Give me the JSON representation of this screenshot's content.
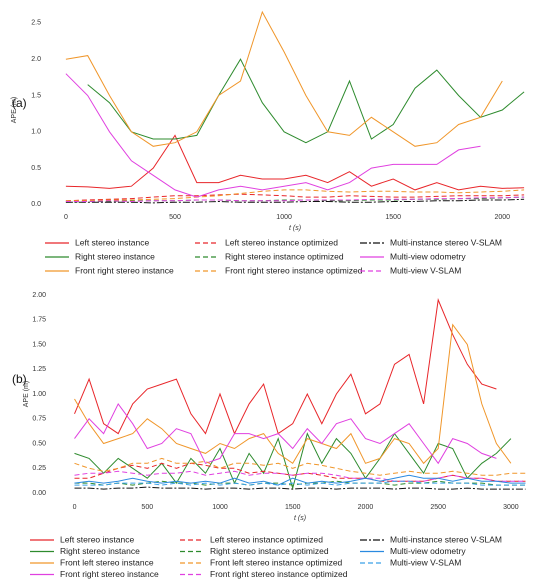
{
  "chart_data": [
    {
      "type": "line",
      "panel_label": "(a)",
      "x_label": "t (s)",
      "y_label": "APE (m)",
      "xlim": [
        -50,
        2150
      ],
      "ylim": [
        -0.05,
        2.65
      ],
      "xticks": [
        0,
        500,
        1000,
        1500,
        2000
      ],
      "yticks": [
        {
          "value": 0,
          "label": "0.0"
        },
        0.5,
        {
          "value": 1,
          "label": "1.0"
        },
        1.5,
        {
          "value": 2,
          "label": "2.0"
        },
        2.5
      ],
      "x": [
        0,
        100,
        200,
        300,
        400,
        500,
        600,
        700,
        800,
        900,
        1000,
        1100,
        1200,
        1300,
        1400,
        1500,
        1600,
        1700,
        1800,
        1900,
        2000,
        2100
      ],
      "series": [
        {
          "name": "Left stereo instance",
          "color": "#e8262a",
          "style": "solid",
          "values": [
            0.25,
            0.24,
            0.22,
            0.25,
            0.5,
            0.95,
            0.3,
            0.3,
            0.4,
            0.35,
            0.35,
            0.4,
            0.3,
            0.45,
            0.25,
            0.35,
            0.2,
            0.3,
            0.2,
            0.25,
            0.22,
            0.23
          ]
        },
        {
          "name": "Right stereo instance",
          "color": "#2e8b2e",
          "style": "solid",
          "values": [
            null,
            1.65,
            1.4,
            1.0,
            0.9,
            0.9,
            0.95,
            1.5,
            2.0,
            1.4,
            1.0,
            0.85,
            1.0,
            1.7,
            0.9,
            1.1,
            1.6,
            1.85,
            1.5,
            1.2,
            1.3,
            1.55
          ]
        },
        {
          "name": "Front right stereo instance",
          "color": "#f0962a",
          "style": "solid",
          "values": [
            2.0,
            2.05,
            1.5,
            1.0,
            0.8,
            0.85,
            1.0,
            1.5,
            1.7,
            2.65,
            2.1,
            1.5,
            1.0,
            0.95,
            1.2,
            1.0,
            0.8,
            0.85,
            1.1,
            1.2,
            1.7,
            null
          ]
        },
        {
          "name": "Left stereo instance optimized",
          "color": "#e8262a",
          "style": "dashed",
          "values": [
            0.05,
            0.06,
            0.07,
            0.08,
            0.1,
            0.12,
            0.12,
            0.13,
            0.14,
            0.13,
            0.12,
            0.1,
            0.1,
            0.12,
            0.11,
            0.1,
            0.1,
            0.11,
            0.12,
            0.12,
            0.12,
            0.13
          ]
        },
        {
          "name": "Right stereo instance optimized",
          "color": "#2e8b2e",
          "style": "dashed",
          "values": [
            0.03,
            0.04,
            0.04,
            0.05,
            0.05,
            0.05,
            0.06,
            0.06,
            0.05,
            0.05,
            0.06,
            0.06,
            0.05,
            0.05,
            0.06,
            0.06,
            0.07,
            0.07,
            0.08,
            0.08,
            0.09,
            0.1
          ]
        },
        {
          "name": "Front right stereo instance optimized",
          "color": "#f0962a",
          "style": "dashed",
          "values": [
            0.05,
            0.05,
            0.06,
            0.06,
            0.07,
            0.08,
            0.1,
            0.12,
            0.15,
            0.18,
            0.2,
            0.2,
            0.18,
            0.17,
            0.18,
            0.18,
            0.17,
            0.17,
            0.16,
            0.17,
            0.18,
            0.2
          ]
        },
        {
          "name": "Multi-instance stereo V-SLAM",
          "color": "#111111",
          "style": "dashdot",
          "values": [
            0.03,
            0.03,
            0.03,
            0.03,
            0.02,
            0.03,
            0.03,
            0.04,
            0.03,
            0.03,
            0.03,
            0.04,
            0.04,
            0.03,
            0.03,
            0.04,
            0.04,
            0.05,
            0.05,
            0.06,
            0.06,
            0.07
          ]
        },
        {
          "name": "Multi-view odometry",
          "color": "#e040e0",
          "style": "solid",
          "values": [
            1.8,
            1.5,
            1.0,
            0.6,
            0.4,
            0.2,
            0.1,
            0.2,
            0.25,
            0.2,
            0.25,
            0.3,
            0.2,
            0.3,
            0.5,
            0.55,
            0.55,
            0.55,
            0.75,
            0.8,
            null,
            null
          ]
        },
        {
          "name": "Multi-view V-SLAM",
          "color": "#e040e0",
          "style": "dashed",
          "values": [
            0.04,
            0.04,
            0.05,
            0.04,
            0.05,
            0.05,
            0.06,
            0.06,
            0.05,
            0.05,
            0.05,
            0.06,
            0.06,
            0.06,
            0.07,
            0.07,
            0.07,
            0.08,
            0.08,
            0.09,
            0.09,
            0.1
          ]
        }
      ]
    },
    {
      "type": "line",
      "panel_label": "(b)",
      "x_label": "t (s)",
      "y_label": "APE (m)",
      "xlim": [
        -100,
        3200
      ],
      "ylim": [
        -0.05,
        2.05
      ],
      "xticks": [
        0,
        500,
        1000,
        1500,
        2000,
        2500,
        3000
      ],
      "yticks": [
        {
          "value": 0,
          "label": "0.00"
        },
        0.25,
        {
          "value": 0.5,
          "label": "0.50"
        },
        0.75,
        {
          "value": 1,
          "label": "1.00"
        },
        1.25,
        {
          "value": 1.5,
          "label": "1.50"
        },
        1.75,
        {
          "value": 2,
          "label": "2.00"
        }
      ],
      "x": [
        0,
        100,
        200,
        300,
        400,
        500,
        600,
        700,
        800,
        900,
        1000,
        1100,
        1200,
        1300,
        1400,
        1500,
        1600,
        1700,
        1800,
        1900,
        2000,
        2100,
        2200,
        2300,
        2400,
        2500,
        2600,
        2700,
        2800,
        2900,
        3000,
        3100
      ],
      "series": [
        {
          "name": "Left stereo instance",
          "color": "#e8262a",
          "style": "solid",
          "values": [
            0.8,
            1.15,
            0.7,
            0.6,
            0.9,
            1.05,
            1.1,
            1.15,
            0.8,
            0.6,
            1.0,
            0.6,
            0.9,
            1.1,
            0.6,
            0.7,
            1.0,
            0.7,
            1.0,
            1.2,
            0.8,
            0.9,
            1.3,
            1.4,
            0.9,
            1.95,
            1.6,
            1.3,
            1.1,
            1.05,
            null,
            null
          ]
        },
        {
          "name": "Right stereo instance",
          "color": "#2e8b2e",
          "style": "solid",
          "values": [
            0.4,
            0.35,
            0.2,
            0.35,
            0.25,
            0.15,
            0.3,
            0.1,
            0.35,
            0.2,
            0.45,
            0.1,
            0.4,
            0.2,
            0.55,
            0.05,
            0.6,
            0.3,
            0.55,
            0.4,
            0.15,
            0.35,
            0.6,
            0.4,
            0.2,
            0.5,
            0.45,
            0.15,
            0.3,
            0.4,
            0.55,
            null
          ]
        },
        {
          "name": "Front left stereo instance",
          "color": "#f0962a",
          "style": "solid",
          "values": [
            0.95,
            0.7,
            0.5,
            0.55,
            0.6,
            0.75,
            0.65,
            0.5,
            0.45,
            0.4,
            0.5,
            0.45,
            0.55,
            0.6,
            0.4,
            0.3,
            0.55,
            0.5,
            0.45,
            0.6,
            0.3,
            0.35,
            0.55,
            0.5,
            0.3,
            0.45,
            1.7,
            1.5,
            0.9,
            0.5,
            0.3,
            null
          ]
        },
        {
          "name": "Front right stereo instance",
          "color": "#e040e0",
          "style": "solid",
          "values": [
            0.55,
            0.75,
            0.6,
            0.9,
            0.7,
            0.45,
            0.5,
            0.65,
            0.6,
            0.3,
            0.35,
            0.6,
            0.6,
            0.55,
            0.6,
            0.45,
            0.65,
            0.5,
            0.7,
            0.75,
            0.55,
            0.5,
            0.6,
            0.7,
            0.5,
            0.3,
            0.55,
            0.5,
            0.4,
            0.35,
            null,
            null
          ]
        },
        {
          "name": "Left stereo instance optimized",
          "color": "#e8262a",
          "style": "dashed",
          "values": [
            0.15,
            0.15,
            0.2,
            0.25,
            0.28,
            0.25,
            0.3,
            0.25,
            0.3,
            0.28,
            0.25,
            0.25,
            0.2,
            0.22,
            0.2,
            0.18,
            0.2,
            0.18,
            0.15,
            0.15,
            0.15,
            0.12,
            0.12,
            0.12,
            0.12,
            0.15,
            0.18,
            0.15,
            0.15,
            0.12,
            0.12,
            0.12
          ]
        },
        {
          "name": "Right stereo instance optimized",
          "color": "#2e8b2e",
          "style": "dashed",
          "values": [
            0.1,
            0.1,
            0.08,
            0.1,
            0.08,
            0.1,
            0.12,
            0.1,
            0.1,
            0.08,
            0.1,
            0.1,
            0.08,
            0.1,
            0.1,
            0.08,
            0.1,
            0.1,
            0.12,
            0.1,
            0.1,
            0.1,
            0.08,
            0.1,
            0.1,
            0.12,
            0.1,
            0.1,
            0.1,
            0.08,
            0.08,
            0.08
          ]
        },
        {
          "name": "Front left stereo instance optimized",
          "color": "#f0962a",
          "style": "dashed",
          "values": [
            0.3,
            0.25,
            0.22,
            0.25,
            0.3,
            0.3,
            0.35,
            0.3,
            0.3,
            0.32,
            0.25,
            0.3,
            0.3,
            0.28,
            0.3,
            0.25,
            0.3,
            0.28,
            0.25,
            0.22,
            0.2,
            0.18,
            0.2,
            0.22,
            0.2,
            0.2,
            0.22,
            0.2,
            0.18,
            0.18,
            0.2,
            0.2
          ]
        },
        {
          "name": "Front right stereo instance optimized",
          "color": "#e040e0",
          "style": "dashed",
          "values": [
            0.18,
            0.2,
            0.2,
            0.22,
            0.2,
            0.18,
            0.2,
            0.2,
            0.22,
            0.18,
            0.2,
            0.22,
            0.18,
            0.2,
            0.2,
            0.18,
            0.2,
            0.2,
            0.18,
            0.15,
            0.15,
            0.15,
            0.12,
            0.12,
            0.12,
            0.15,
            0.18,
            0.15,
            0.15,
            0.12,
            0.12,
            0.12
          ]
        },
        {
          "name": "Multi-instance stereo V-SLAM",
          "color": "#111111",
          "style": "dashdot",
          "values": [
            0.05,
            0.05,
            0.04,
            0.05,
            0.05,
            0.06,
            0.05,
            0.05,
            0.05,
            0.04,
            0.05,
            0.05,
            0.04,
            0.05,
            0.05,
            0.04,
            0.05,
            0.05,
            0.04,
            0.05,
            0.05,
            0.05,
            0.04,
            0.05,
            0.05,
            0.04,
            0.04,
            0.05,
            0.04,
            0.04,
            0.04,
            0.04
          ]
        },
        {
          "name": "Multi-view odometry",
          "color": "#2a8ae0",
          "style": "solid",
          "values": [
            0.1,
            0.12,
            0.1,
            0.12,
            0.15,
            0.12,
            0.1,
            0.12,
            0.1,
            0.12,
            0.1,
            0.15,
            0.1,
            0.12,
            0.08,
            0.15,
            0.1,
            0.12,
            0.1,
            0.12,
            0.15,
            0.12,
            0.15,
            0.18,
            0.15,
            0.15,
            0.12,
            0.15,
            0.12,
            0.12,
            0.1,
            0.1
          ]
        },
        {
          "name": "Multi-view V-SLAM",
          "color": "#3aa0e8",
          "style": "dashed",
          "values": [
            0.08,
            0.08,
            0.08,
            0.1,
            0.1,
            0.1,
            0.08,
            0.1,
            0.08,
            0.1,
            0.08,
            0.1,
            0.08,
            0.1,
            0.08,
            0.1,
            0.08,
            0.1,
            0.08,
            0.1,
            0.1,
            0.1,
            0.12,
            0.12,
            0.1,
            0.1,
            0.1,
            0.1,
            0.08,
            0.08,
            0.08,
            0.08
          ]
        }
      ]
    }
  ]
}
